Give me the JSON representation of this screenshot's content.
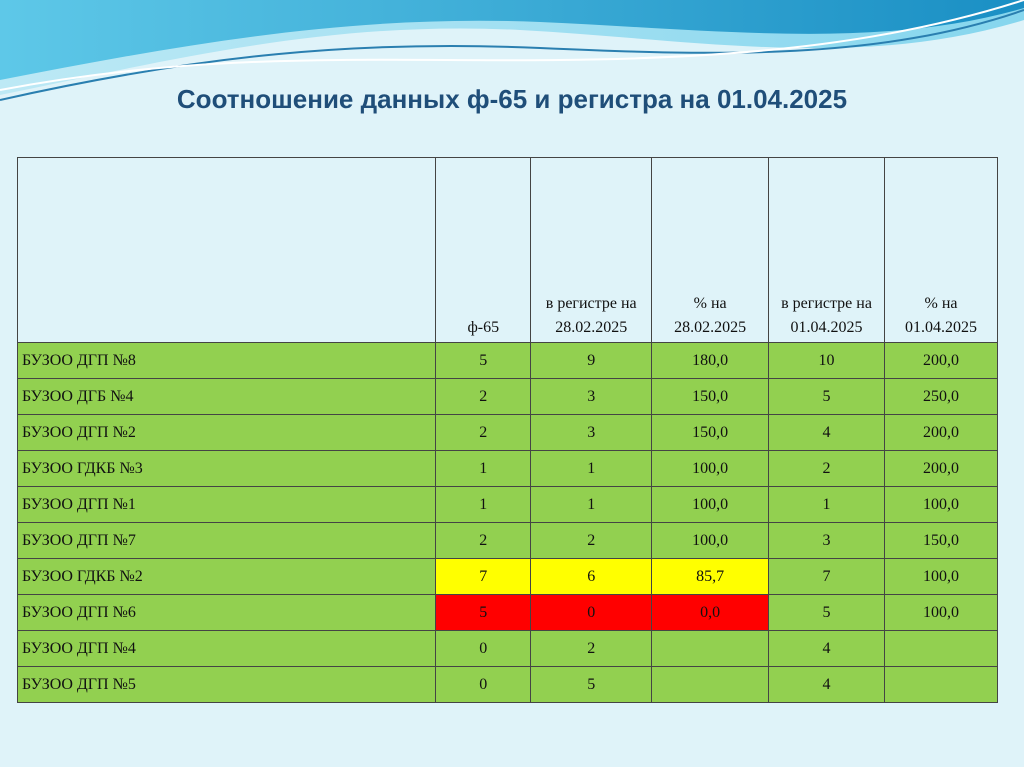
{
  "header": {
    "title": "Соотношение данных ф-65 и регистра на 01.04.2025"
  },
  "table": {
    "columns": [
      null,
      "ф-65",
      "в регистре на 28.02.2025",
      "% на 28.02.2025",
      "в регистре на 01.04.2025",
      "% на 01.04.2025"
    ],
    "rows": [
      [
        "БУЗОО ДГП №8",
        "5",
        "9",
        "180,0",
        "10",
        "200,0"
      ],
      [
        "БУЗОО ДГБ №4",
        "2",
        "3",
        "150,0",
        "5",
        "250,0"
      ],
      [
        "БУЗОО ДГП №2",
        "2",
        "3",
        "150,0",
        "4",
        "200,0"
      ],
      [
        "БУЗОО ГДКБ №3",
        "1",
        "1",
        "100,0",
        "2",
        "200,0"
      ],
      [
        "БУЗОО ДГП №1",
        "1",
        "1",
        "100,0",
        "1",
        "100,0"
      ],
      [
        "БУЗОО ДГП №7",
        "2",
        "2",
        "100,0",
        "3",
        "150,0"
      ],
      [
        "БУЗОО ГДКБ №2",
        "7",
        "6",
        "85,7",
        "7",
        "100,0"
      ],
      [
        "БУЗОО ДГП №6",
        "5",
        "0",
        "0,0",
        "5",
        "100,0"
      ],
      [
        "БУЗОО ДГП №4",
        "0",
        "2",
        null,
        "4",
        null
      ],
      [
        "БУЗОО ДГП №5",
        "0",
        "5",
        null,
        "4",
        null
      ]
    ]
  }
}
